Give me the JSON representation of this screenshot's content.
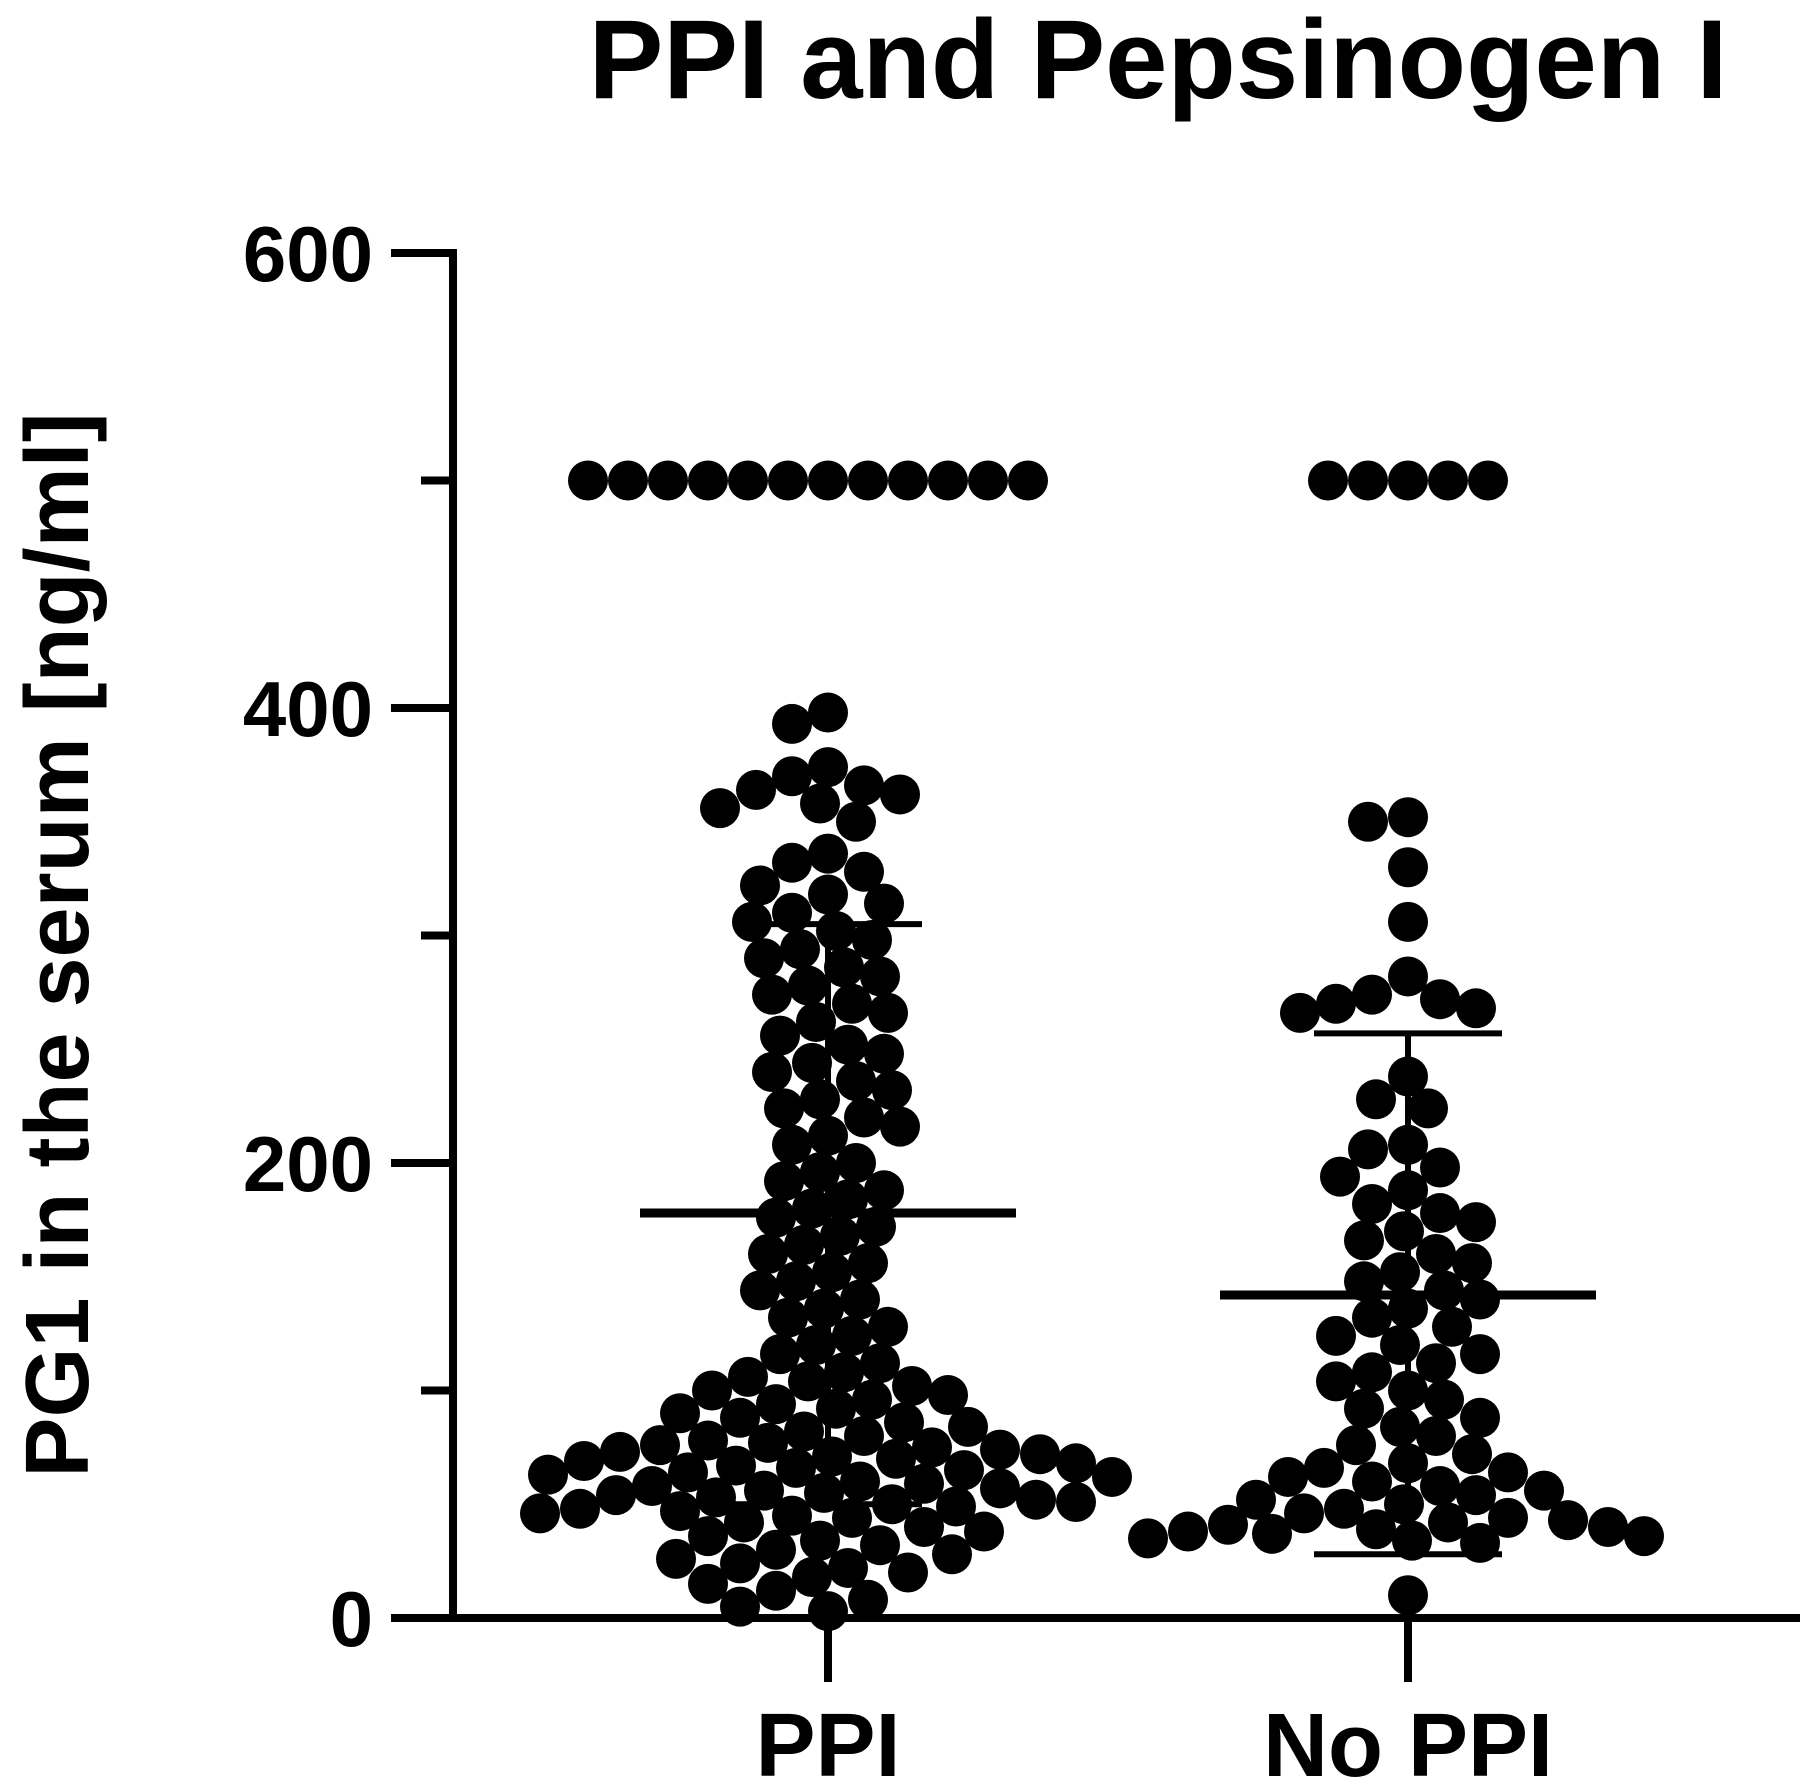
{
  "chart_data": {
    "type": "scatter",
    "title": "PPI and Pepsinogen I",
    "ylabel": "PG1 in the serum [ng/ml]",
    "xlabel": "",
    "ylim": [
      0,
      600
    ],
    "yticks": [
      0,
      200,
      400,
      600
    ],
    "ytick_labels": [
      "0",
      "200",
      "400",
      "600"
    ],
    "yminor_ticks": [
      100,
      300,
      500
    ],
    "categories": [
      "PPI",
      "No PPI"
    ],
    "style": {
      "point_color": "#000000",
      "axis_color": "#000000"
    },
    "series": [
      {
        "category": "PPI",
        "mean": 178,
        "sd_upper": 305,
        "sd_lower": 50,
        "values": [
          500,
          500,
          500,
          500,
          500,
          500,
          500,
          500,
          500,
          500,
          500,
          500,
          398,
          393,
          374,
          370,
          366,
          364,
          362,
          358,
          356,
          350,
          336,
          332,
          328,
          322,
          318,
          314,
          310,
          306,
          302,
          298,
          294,
          290,
          286,
          282,
          278,
          274,
          270,
          266,
          262,
          256,
          252,
          248,
          244,
          240,
          236,
          232,
          228,
          224,
          220,
          216,
          212,
          208,
          200,
          196,
          192,
          188,
          184,
          180,
          176,
          172,
          168,
          164,
          160,
          156,
          152,
          148,
          144,
          140,
          136,
          132,
          128,
          124,
          120,
          116,
          112,
          108,
          106,
          104,
          102,
          100,
          98,
          96,
          94,
          92,
          90,
          88,
          86,
          84,
          82,
          80,
          78,
          77,
          76,
          75,
          74,
          73,
          72,
          71,
          70,
          69,
          68,
          67,
          66,
          65,
          64,
          63,
          62,
          60,
          59,
          58,
          57,
          56,
          55,
          54,
          53,
          52,
          51,
          50,
          49,
          48,
          47,
          46,
          45,
          44,
          42,
          40,
          38,
          36,
          34,
          32,
          30,
          28,
          26,
          24,
          22,
          20,
          18,
          15,
          12,
          8,
          5,
          3
        ]
      },
      {
        "category": "No PPI",
        "mean": 142,
        "sd_upper": 257,
        "sd_lower": 28,
        "values": [
          500,
          500,
          500,
          500,
          500,
          352,
          350,
          330,
          306,
          282,
          274,
          272,
          270,
          268,
          266,
          238,
          228,
          224,
          208,
          206,
          198,
          194,
          188,
          182,
          178,
          174,
          170,
          166,
          160,
          156,
          152,
          148,
          144,
          140,
          136,
          132,
          128,
          124,
          120,
          116,
          112,
          108,
          104,
          100,
          96,
          92,
          88,
          84,
          80,
          76,
          72,
          68,
          66,
          64,
          62,
          60,
          58,
          56,
          54,
          52,
          50,
          48,
          46,
          44,
          43,
          42,
          41,
          40,
          39,
          38,
          37,
          36,
          35,
          34,
          33,
          10
        ]
      }
    ]
  }
}
